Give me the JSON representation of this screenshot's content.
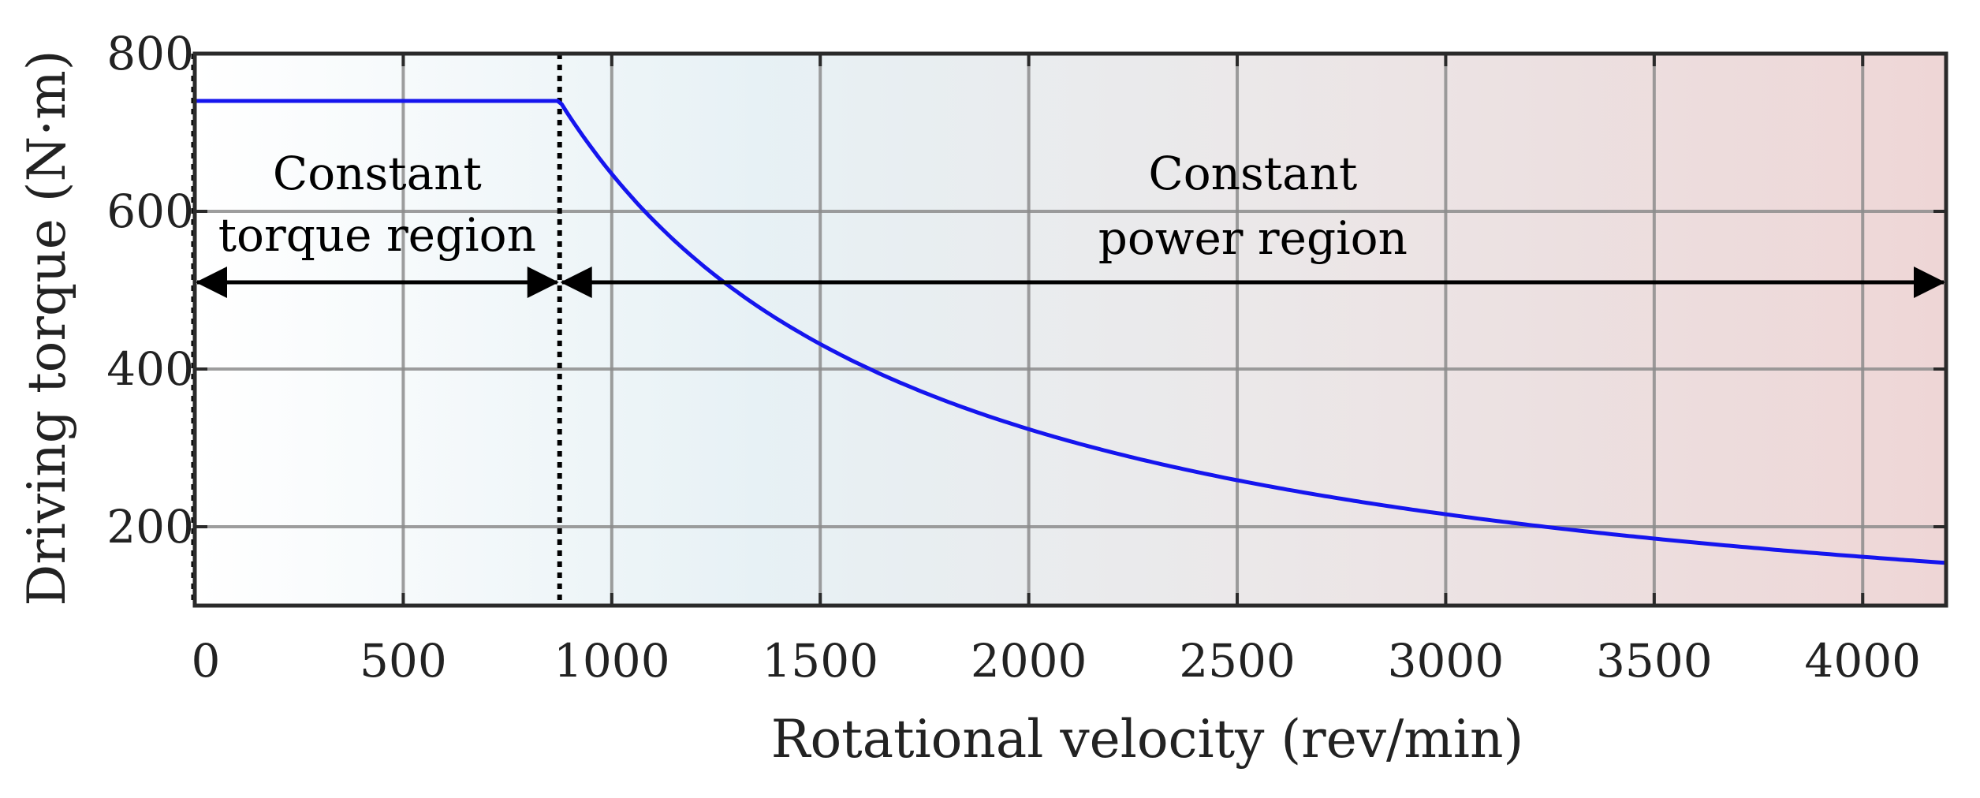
{
  "chart_data": {
    "type": "line",
    "title": "",
    "xlabel": "Rotational velocity (rev/min)",
    "ylabel": "Driving torque (N·m)",
    "xlim": [
      0,
      4200
    ],
    "ylim": [
      100,
      800
    ],
    "xticks": [
      0,
      500,
      1000,
      1500,
      2000,
      2500,
      3000,
      3500,
      4000
    ],
    "yticks": [
      200,
      400,
      600,
      800
    ],
    "xtick_labels": [
      "0",
      "500",
      "1000",
      "1500",
      "2000",
      "2500",
      "3000",
      "3500",
      "4000"
    ],
    "ytick_labels": [
      "200",
      "400",
      "600",
      "800"
    ],
    "grid": true,
    "series": [
      {
        "name": "Driving torque",
        "color": "#1515ee",
        "x": [
          0,
          875,
          1000,
          1250,
          1500,
          1750,
          2000,
          2500,
          3000,
          3500,
          4200
        ],
        "y": [
          740,
          740,
          647,
          518,
          432,
          370,
          324,
          259,
          216,
          185,
          154
        ]
      }
    ],
    "base_speed": 875,
    "rated_torque": 740,
    "regions": [
      {
        "line1": "Constant",
        "line2": "torque region",
        "from": 0,
        "to": 875
      },
      {
        "line1": "Constant",
        "line2": "power region",
        "from": 875,
        "to": 4200
      }
    ],
    "arrow_y": 510,
    "colors": {
      "curve": "#1515ee",
      "grid": "#8c8c8c",
      "frame": "#2a2a2a",
      "background_left": "#ffffff",
      "background_mid": "#e7f1f5",
      "background_right": "#eed6d6"
    }
  }
}
